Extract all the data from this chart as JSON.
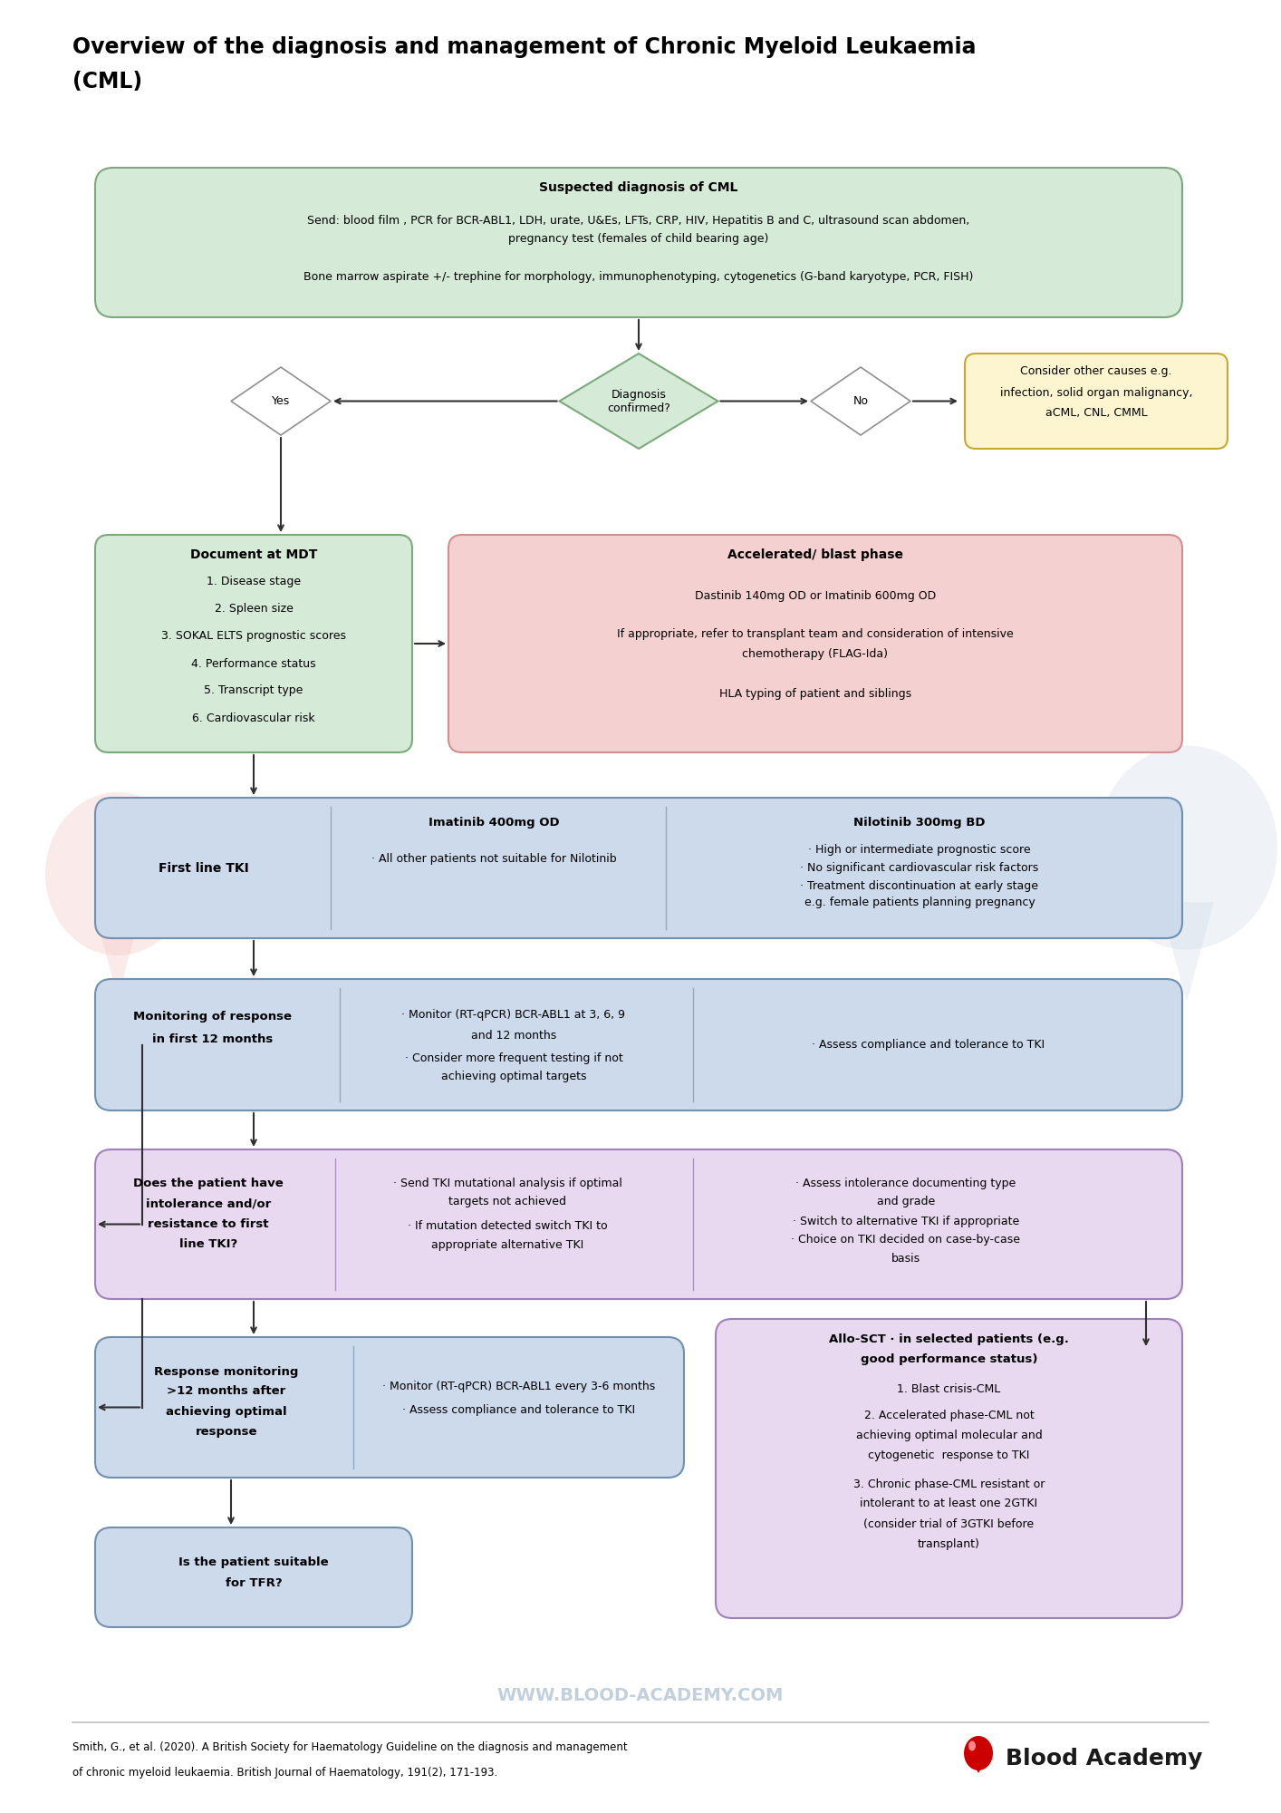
{
  "title_line1": "Overview of the diagnosis and management of Chronic Myeloid Leukaemia",
  "title_line2": "(CML)",
  "bg_color": "#ffffff",
  "watermark": "WWW.BLOOD-ACADEMY.COM",
  "citation_line1": "Smith, G., et al. (2020). A British Society for Haematology Guideline on the diagnosis and management",
  "citation_line2": "of chronic myeloid leukaemia. British Journal of Haematology, 191(2), 171-193.",
  "logo_text": "Blood Academy",
  "box_green_light": "#d6ead8",
  "box_green_border": "#7aaa7a",
  "box_blue_light": "#ccdaeb",
  "box_blue_border": "#7090b0",
  "box_pink_light": "#f5d0d0",
  "box_pink_border": "#d09090",
  "box_purple_light": "#e8d8f0",
  "box_purple_border": "#a080b8",
  "box_yellow_light": "#fdf5d0",
  "box_yellow_border": "#c8a832",
  "arrow_color": "#303030",
  "text_color": "#000000",
  "watermark_color": "#b8c8d8",
  "sep_line_color": "#c0c0c0",
  "bg_drop_red": "#f5c5c5",
  "bg_drop_blue": "#c0d0e0"
}
